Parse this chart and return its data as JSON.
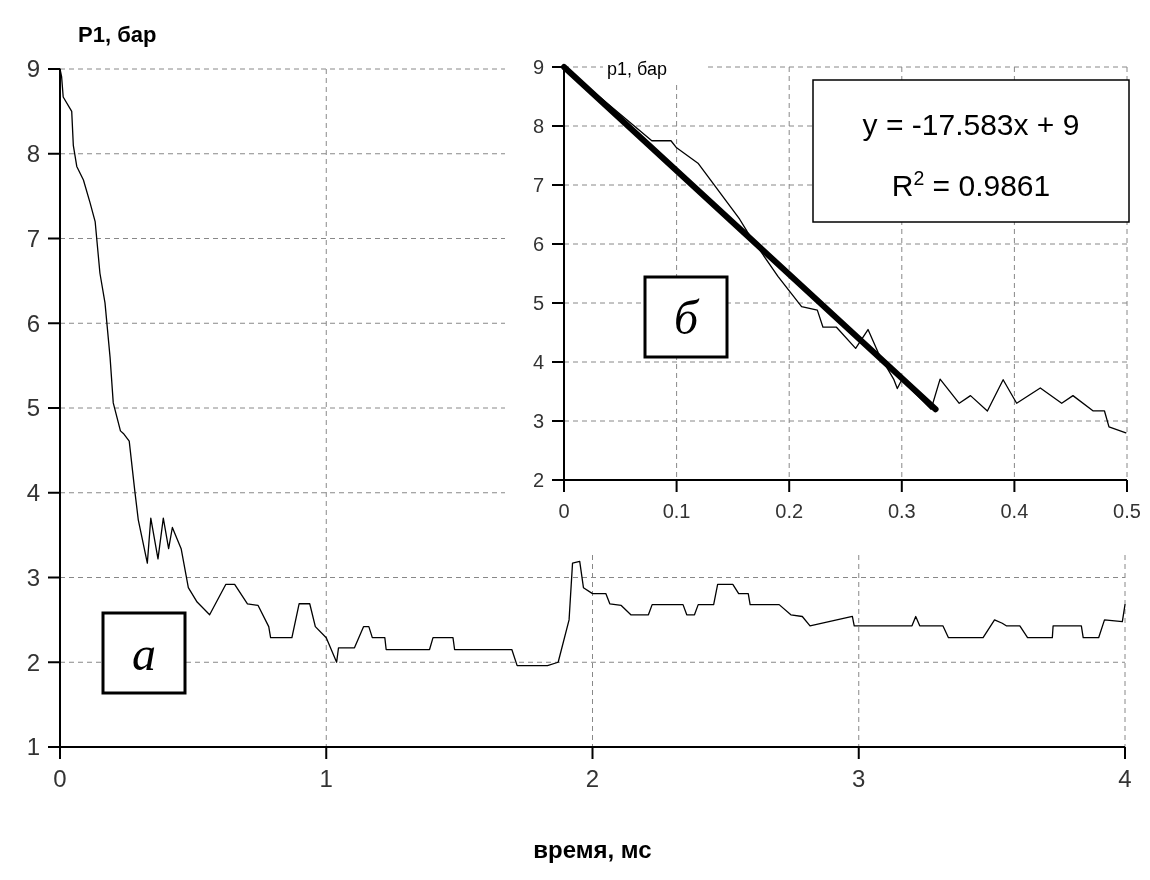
{
  "chart_data": [
    {
      "type": "line",
      "xlabel": "время, мс",
      "ylabel": "P1, бар",
      "xlim": [
        0,
        4
      ],
      "xticks": [
        0,
        1,
        2,
        3,
        4
      ],
      "ylim": [
        1,
        9
      ],
      "yticks": [
        1,
        2,
        3,
        4,
        5,
        6,
        7,
        8,
        9
      ],
      "grid": true,
      "annotations": [
        "а"
      ],
      "series": [
        {
          "color": "#000000",
          "x": [
            0,
            0.006,
            0.012,
            0.044,
            0.05,
            0.063,
            0.088,
            0.113,
            0.132,
            0.15,
            0.169,
            0.188,
            0.2,
            0.227,
            0.238,
            0.26,
            0.281,
            0.294,
            0.328,
            0.341,
            0.368,
            0.388,
            0.408,
            0.422,
            0.455,
            0.482,
            0.515,
            0.562,
            0.623,
            0.656,
            0.704,
            0.744,
            0.784,
            0.791,
            0.871,
            0.898,
            0.938,
            0.959,
            1.0,
            1.039,
            1.046,
            1.106,
            1.14,
            1.16,
            1.173,
            1.22,
            1.225,
            1.388,
            1.401,
            1.476,
            1.482,
            1.697,
            1.717,
            1.831,
            1.871,
            1.912,
            1.925,
            1.952,
            1.966,
            2.0,
            2.05,
            2.065,
            2.108,
            2.144,
            2.21,
            2.224,
            2.34,
            2.354,
            2.383,
            2.397,
            2.455,
            2.47,
            2.527,
            2.549,
            2.585,
            2.592,
            2.701,
            2.745,
            2.788,
            2.817,
            2.976,
            2.983,
            3.2,
            3.214,
            3.229,
            3.316,
            3.337,
            3.467,
            3.51,
            3.539,
            3.554,
            3.605,
            3.634,
            3.727,
            3.73,
            3.836,
            3.843,
            3.901,
            3.923,
            3.99,
            4.0
          ],
          "values": [
            9,
            8.91,
            8.67,
            8.5,
            8.1,
            7.85,
            7.69,
            7.42,
            7.2,
            6.59,
            6.24,
            5.6,
            5.06,
            4.73,
            4.7,
            4.61,
            4.02,
            3.68,
            3.17,
            3.7,
            3.22,
            3.7,
            3.34,
            3.59,
            3.34,
            2.88,
            2.71,
            2.56,
            2.92,
            2.92,
            2.69,
            2.67,
            2.42,
            2.29,
            2.29,
            2.69,
            2.69,
            2.42,
            2.29,
            2.0,
            2.17,
            2.17,
            2.42,
            2.42,
            2.29,
            2.29,
            2.15,
            2.15,
            2.29,
            2.29,
            2.15,
            2.15,
            1.96,
            1.96,
            2.0,
            2.5,
            3.17,
            3.19,
            2.88,
            2.81,
            2.81,
            2.69,
            2.67,
            2.56,
            2.56,
            2.68,
            2.68,
            2.56,
            2.56,
            2.68,
            2.68,
            2.92,
            2.92,
            2.81,
            2.81,
            2.68,
            2.68,
            2.56,
            2.54,
            2.43,
            2.54,
            2.43,
            2.43,
            2.54,
            2.43,
            2.43,
            2.29,
            2.29,
            2.5,
            2.46,
            2.43,
            2.43,
            2.29,
            2.29,
            2.43,
            2.43,
            2.29,
            2.29,
            2.5,
            2.48,
            2.68
          ]
        }
      ]
    },
    {
      "type": "line",
      "ylabel": "p1, бар",
      "xlim": [
        0,
        0.5
      ],
      "xticks": [
        0,
        0.1,
        0.2,
        0.3,
        0.4,
        0.5
      ],
      "ylim": [
        2,
        9
      ],
      "yticks": [
        2,
        3,
        4,
        5,
        6,
        7,
        8,
        9
      ],
      "grid": true,
      "annotations": [
        "б",
        "y = -17.583x + 9",
        "R$^{2}$ = 0.9861"
      ],
      "series": [
        {
          "color": "#000000",
          "x": [
            0,
            0.078,
            0.095,
            0.1,
            0.119,
            0.156,
            0.163,
            0.19,
            0.211,
            0.225,
            0.23,
            0.242,
            0.259,
            0.27,
            0.279,
            0.293,
            0.296,
            0.3,
            0.326,
            0.334,
            0.351,
            0.361,
            0.376,
            0.39,
            0.402,
            0.423,
            0.442,
            0.452,
            0.47,
            0.48,
            0.484,
            0.499
          ],
          "values": [
            9,
            7.75,
            7.75,
            7.63,
            7.37,
            6.42,
            6.2,
            5.45,
            4.94,
            4.88,
            4.59,
            4.59,
            4.23,
            4.55,
            4.16,
            3.7,
            3.55,
            3.7,
            3.2,
            3.71,
            3.3,
            3.43,
            3.17,
            3.7,
            3.3,
            3.56,
            3.3,
            3.43,
            3.17,
            3.17,
            2.9,
            2.8
          ]
        },
        {
          "type": "line",
          "color": "#000000",
          "x": [
            0,
            0.33
          ],
          "values": [
            9,
            3.2
          ]
        }
      ]
    }
  ]
}
